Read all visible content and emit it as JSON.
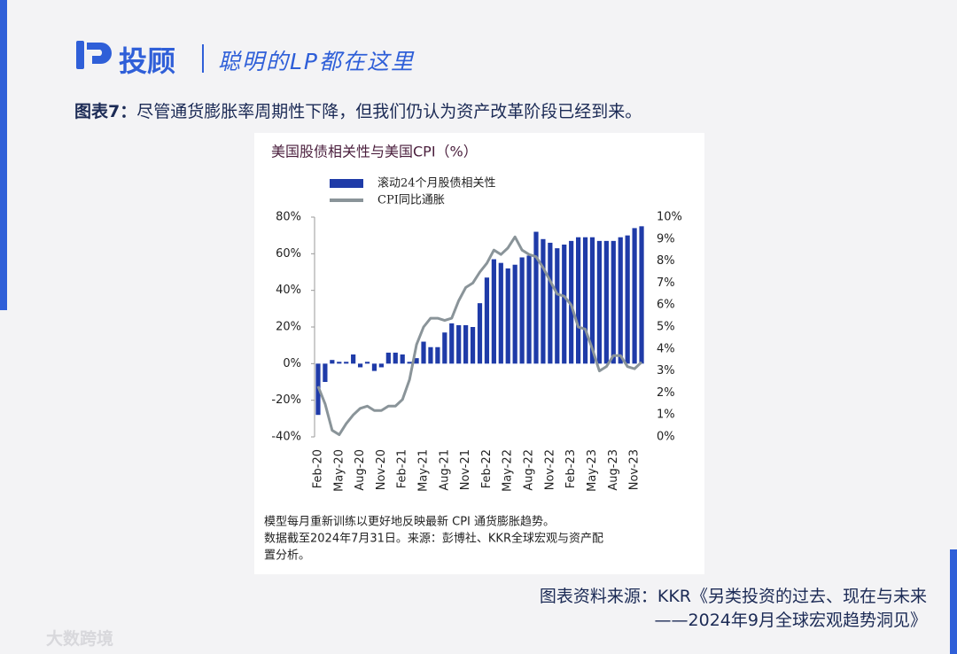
{
  "header": {
    "brand": "投顾",
    "slogan": "聪明的LP都在这里"
  },
  "caption": {
    "label": "图表7：",
    "text": "尽管通货膨胀率周期性下降，但我们仍认为资产改革阶段已经到来。"
  },
  "chart_data": {
    "type": "bar",
    "title": "美国股债相关性与美国CPI（%）",
    "categories": [
      "Feb-20",
      null,
      null,
      "May-20",
      null,
      null,
      "Aug-20",
      null,
      null,
      "Nov-20",
      null,
      null,
      "Feb-21",
      null,
      null,
      "May-21",
      null,
      null,
      "Aug-21",
      null,
      null,
      "Nov-21",
      null,
      null,
      "Feb-22",
      null,
      null,
      "May-22",
      null,
      null,
      "Aug-22",
      null,
      null,
      "Nov-22",
      null,
      null,
      "Feb-23",
      null,
      null,
      "May-23",
      null,
      null,
      "Aug-23",
      null,
      null,
      "Nov-23",
      null
    ],
    "series": [
      {
        "name": "滚动24个月股债相关性",
        "color": "#1f3ba8",
        "type": "bar",
        "values": [
          -28,
          -10,
          2,
          1,
          1,
          5,
          -2,
          1,
          -4,
          -2,
          6,
          6,
          5,
          1,
          3,
          12,
          9,
          9,
          17,
          22,
          21,
          21,
          20,
          33,
          47,
          57,
          55,
          52,
          54,
          58,
          59,
          72,
          68,
          66,
          63,
          65,
          67,
          69,
          69,
          69,
          67,
          67,
          67,
          69,
          70,
          74,
          75
        ]
      },
      {
        "name": "CPI同比通胀",
        "color": "#8a9499",
        "type": "line",
        "axis": "y2",
        "values": [
          2.3,
          1.5,
          0.3,
          0.1,
          0.6,
          1.0,
          1.3,
          1.4,
          1.2,
          1.2,
          1.4,
          1.4,
          1.7,
          2.6,
          4.2,
          5.0,
          5.4,
          5.4,
          5.3,
          5.4,
          6.2,
          6.8,
          7.0,
          7.5,
          7.9,
          8.5,
          8.3,
          8.6,
          9.1,
          8.5,
          8.3,
          8.2,
          7.7,
          7.1,
          6.5,
          6.4,
          6.0,
          5.0,
          4.9,
          4.0,
          3.0,
          3.2,
          3.7,
          3.7,
          3.2,
          3.1,
          3.4
        ]
      }
    ],
    "ylim": [
      -40,
      80
    ],
    "yticks": [
      {
        "value": -40,
        "label": "-40%"
      },
      {
        "value": -20,
        "label": "-20%"
      },
      {
        "value": 0,
        "label": "0%"
      },
      {
        "value": 20,
        "label": "20%"
      },
      {
        "value": 40,
        "label": "40%"
      },
      {
        "value": 60,
        "label": "60%"
      },
      {
        "value": 80,
        "label": "80%"
      }
    ],
    "y2lim": [
      0,
      10
    ],
    "y2ticks": [
      {
        "value": 0,
        "label": "0%"
      },
      {
        "value": 1,
        "label": "1%"
      },
      {
        "value": 2,
        "label": "2%"
      },
      {
        "value": 3,
        "label": "3%"
      },
      {
        "value": 4,
        "label": "4%"
      },
      {
        "value": 5,
        "label": "5%"
      },
      {
        "value": 6,
        "label": "6%"
      },
      {
        "value": 7,
        "label": "7%"
      },
      {
        "value": 8,
        "label": "8%"
      },
      {
        "value": 9,
        "label": "9%"
      },
      {
        "value": 10,
        "label": "10%"
      }
    ],
    "notes": [
      "模型每月重新训练以更好地反映最新 CPI 通货膨胀趋势。",
      "数据截至2024年7月31日。来源：彭博社、KKR全球宏观与资产配",
      "置分析。"
    ]
  },
  "source": [
    "图表资料来源：KKR《另类投资的过去、现在与未来",
    "——2024年9月全球宏观趋势洞见》"
  ],
  "watermark": "大数跨境"
}
